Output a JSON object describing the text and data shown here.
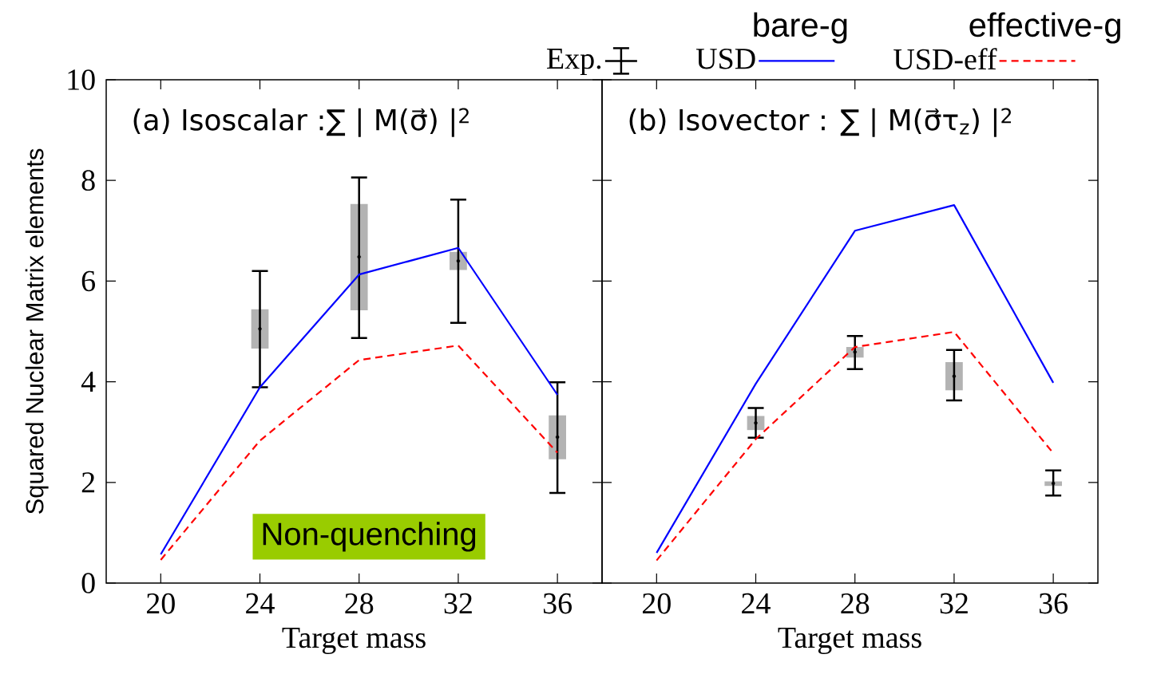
{
  "chart_data": [
    {
      "type": "line",
      "title": "(a) Isoscalar :∑ | M(σ⃗) |$^{2}$",
      "xlabel": "Target mass",
      "ylabel": "Squared Nuclear Matrix elements",
      "xlim": [
        17.8,
        37.8
      ],
      "ylim": [
        0,
        10
      ],
      "xticks": [
        20,
        24,
        28,
        32,
        36
      ],
      "yticks": [
        0,
        2,
        4,
        6,
        8,
        10
      ],
      "annotations": [
        "Non-quenching"
      ],
      "series": [
        {
          "type": "bar",
          "color": "#b3b3b3",
          "x": [
            24,
            28,
            32,
            36
          ],
          "base": [
            4.66,
            5.42,
            6.22,
            2.46
          ],
          "values": [
            0.78,
            2.11,
            0.36,
            0.87
          ]
        },
        {
          "type": "scatter",
          "color": "#000000",
          "x": [
            24,
            28,
            32,
            36
          ],
          "values": [
            5.05,
            6.48,
            6.4,
            2.9
          ],
          "errors": [
            [
              3.89,
              6.2
            ],
            [
              4.87,
              8.06
            ],
            [
              5.17,
              7.62
            ],
            [
              1.79,
              3.99
            ]
          ]
        },
        {
          "color": "#0000ff",
          "x": [
            20,
            24,
            28,
            32,
            36
          ],
          "values": [
            0.57,
            3.89,
            6.13,
            6.66,
            3.74
          ]
        },
        {
          "color": "#ff0000",
          "line_style": "dashed",
          "x": [
            20,
            24,
            28,
            32,
            36
          ],
          "values": [
            0.46,
            2.83,
            4.43,
            4.72,
            2.59
          ]
        }
      ]
    },
    {
      "type": "line",
      "title": "(b) Isovector : ∑ | M(σ⃗τ$_{z}$) |$^{2}$",
      "xlabel": "Target mass",
      "xlim": [
        17.8,
        37.8
      ],
      "ylim": [
        0,
        10
      ],
      "xticks": [
        20,
        24,
        28,
        32,
        36
      ],
      "yticks": [
        0,
        2,
        4,
        6,
        8,
        10
      ],
      "tick_labels": "x",
      "legend": "top",
      "annotations": [
        "bare-g",
        "effective-g"
      ],
      "series": [
        {
          "type": "bar",
          "color": "#b3b3b3",
          "x": [
            24,
            28,
            32,
            36
          ],
          "base": [
            3.04,
            4.48,
            3.83,
            1.93
          ],
          "values": [
            0.28,
            0.21,
            0.56,
            0.09
          ]
        },
        {
          "type": "scatter",
          "name": "Exp.",
          "color": "#000000",
          "x": [
            24,
            28,
            32,
            36
          ],
          "values": [
            3.18,
            4.59,
            4.11,
            1.98
          ],
          "errors": [
            [
              2.89,
              3.48
            ],
            [
              4.25,
              4.91
            ],
            [
              3.63,
              4.63
            ],
            [
              1.74,
              2.24
            ]
          ]
        },
        {
          "name": "USD",
          "color": "#0000ff",
          "x": [
            20,
            24,
            28,
            32,
            36
          ],
          "values": [
            0.6,
            3.96,
            7.0,
            7.51,
            3.98
          ]
        },
        {
          "name": "USD-eff",
          "color": "#ff0000",
          "line_style": "dashed",
          "x": [
            20,
            24,
            28,
            32,
            36
          ],
          "values": [
            0.45,
            2.86,
            4.69,
            4.99,
            2.58
          ]
        }
      ]
    }
  ]
}
